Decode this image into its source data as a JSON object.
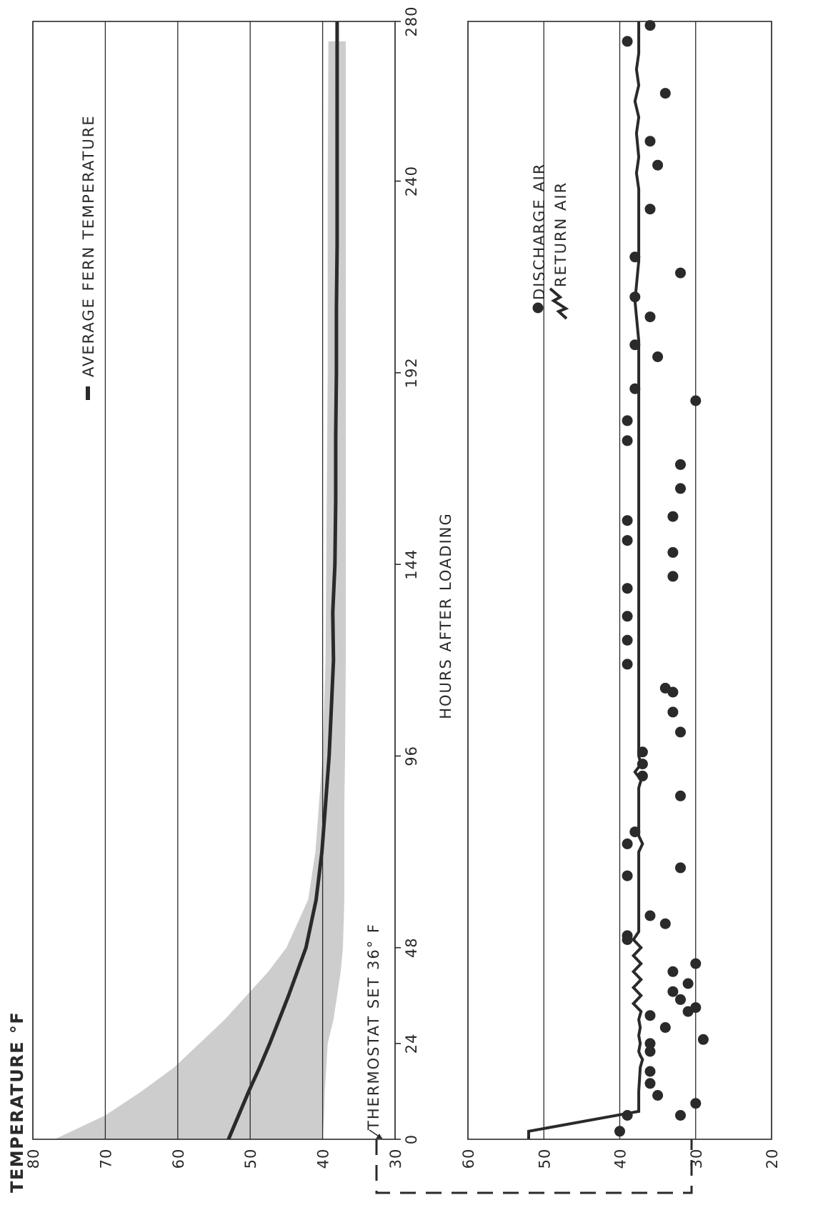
{
  "chart_data": [
    {
      "type": "area",
      "title": "TEMPERATURE °F",
      "xlabel": "HOURS AFTER LOADING",
      "ylabel": "TEMPERATURE °F",
      "xlim": [
        0,
        280
      ],
      "ylim": [
        30,
        80
      ],
      "x_ticks": [
        "0",
        "24",
        "48",
        "96",
        "144",
        "192",
        "240",
        "280"
      ],
      "y_ticks": [
        "80",
        "70",
        "60",
        "50",
        "40",
        "30"
      ],
      "grid": true,
      "legend": "top-right",
      "series": [
        {
          "name": "AVERAGE FERN TEMPERATURE",
          "type": "line",
          "x": [
            0,
            6,
            12,
            18,
            24,
            30,
            36,
            42,
            48,
            60,
            72,
            84,
            96,
            108,
            120,
            132,
            144,
            160,
            176,
            192,
            208,
            224,
            240,
            256,
            272,
            280
          ],
          "y": [
            53,
            51.6,
            50.2,
            48.7,
            47.3,
            46,
            44.7,
            43.5,
            42.3,
            40.9,
            40.1,
            39.6,
            39.1,
            38.8,
            38.5,
            38.6,
            38.3,
            38.2,
            38.2,
            38.1,
            38.1,
            38,
            38,
            38,
            38,
            38
          ]
        }
      ],
      "band": {
        "x": [
          0,
          6,
          12,
          18,
          24,
          30,
          36,
          42,
          48,
          60,
          72,
          84,
          96,
          120,
          144,
          192,
          240,
          275
        ],
        "upper": [
          77,
          70,
          65,
          60.5,
          57,
          53.5,
          50.5,
          47.5,
          45,
          42,
          41,
          40.5,
          40,
          39.6,
          39.5,
          39.3,
          39.3,
          39.2
        ],
        "lower": [
          40,
          39.8,
          39.7,
          39.5,
          39.3,
          38.5,
          38,
          37.5,
          37.2,
          37,
          37,
          37,
          36.9,
          36.8,
          36.8,
          36.8,
          36.8,
          36.8
        ]
      },
      "annotations": [
        {
          "text": "THERMOSTAT SET 36° F",
          "x": 0,
          "y": 36
        }
      ]
    },
    {
      "type": "scatter",
      "xlabel": "HOURS AFTER LOADING",
      "xlim": [
        0,
        280
      ],
      "ylim": [
        20,
        60
      ],
      "x_ticks": [
        "0",
        "24",
        "48",
        "96",
        "144",
        "192",
        "240",
        "280"
      ],
      "y_ticks": [
        "60",
        "50",
        "40",
        "30",
        "20"
      ],
      "grid": true,
      "legend": "top-right",
      "series": [
        {
          "name": "DISCHARGE AIR",
          "type": "scatter",
          "points": [
            [
              2,
              40
            ],
            [
              6,
              39
            ],
            [
              6,
              32
            ],
            [
              9,
              30
            ],
            [
              11,
              35
            ],
            [
              14,
              36
            ],
            [
              17,
              36
            ],
            [
              22,
              36
            ],
            [
              24,
              36
            ],
            [
              25,
              29
            ],
            [
              28,
              34
            ],
            [
              31,
              36
            ],
            [
              32,
              31
            ],
            [
              33,
              30
            ],
            [
              35,
              32
            ],
            [
              37,
              33
            ],
            [
              39,
              31
            ],
            [
              42,
              33
            ],
            [
              44,
              30
            ],
            [
              50,
              39
            ],
            [
              51,
              39
            ],
            [
              54,
              34
            ],
            [
              56,
              36
            ],
            [
              66,
              39
            ],
            [
              68,
              32
            ],
            [
              74,
              39
            ],
            [
              77,
              38
            ],
            [
              86,
              32
            ],
            [
              91,
              37
            ],
            [
              94,
              37
            ],
            [
              97,
              37
            ],
            [
              102,
              32
            ],
            [
              107,
              33
            ],
            [
              112,
              33
            ],
            [
              113,
              34
            ],
            [
              119,
              39
            ],
            [
              125,
              39
            ],
            [
              131,
              39
            ],
            [
              138,
              39
            ],
            [
              141,
              33
            ],
            [
              147,
              33
            ],
            [
              150,
              39
            ],
            [
              155,
              39
            ],
            [
              156,
              33
            ],
            [
              163,
              32
            ],
            [
              169,
              32
            ],
            [
              175,
              39
            ],
            [
              180,
              39
            ],
            [
              185,
              30
            ],
            [
              188,
              38
            ],
            [
              196,
              35
            ],
            [
              199,
              38
            ],
            [
              206,
              36
            ],
            [
              211,
              38
            ],
            [
              217,
              32
            ],
            [
              221,
              38
            ],
            [
              233,
              36
            ],
            [
              244,
              35
            ],
            [
              250,
              36
            ],
            [
              262,
              34
            ],
            [
              275,
              39
            ],
            [
              279,
              36
            ]
          ]
        },
        {
          "name": "RETURN AIR",
          "type": "line",
          "x": [
            0,
            2,
            7,
            12,
            18,
            20,
            21,
            22,
            24,
            26,
            28,
            30,
            32,
            34,
            36,
            38,
            40,
            42,
            44,
            46,
            48,
            50,
            52,
            72,
            74,
            76,
            78,
            88,
            90,
            92,
            94,
            96,
            98,
            140,
            146,
            152,
            160,
            170,
            180,
            190,
            200,
            210,
            220,
            230,
            238,
            242,
            246,
            252,
            256,
            260,
            264,
            268,
            272,
            280
          ],
          "y": [
            52,
            52,
            37.5,
            37.5,
            37.3,
            37,
            37.3,
            37.5,
            37.3,
            37.5,
            37.3,
            37.5,
            37.2,
            38.2,
            37.2,
            38.2,
            37.2,
            38.2,
            37.2,
            38.2,
            37.2,
            38.2,
            37.5,
            37.5,
            37,
            37.5,
            37.5,
            37.5,
            37.2,
            38,
            37.2,
            37.5,
            37.5,
            37.5,
            37.5,
            37.5,
            37.5,
            37.5,
            37.5,
            37.5,
            37.5,
            38,
            37.5,
            37.5,
            37.5,
            37.8,
            37.5,
            37.8,
            37.5,
            38,
            37.5,
            37.8,
            37.5,
            37.5
          ]
        }
      ]
    }
  ],
  "labels": {
    "page_title": "TEMPERATURE °F",
    "xlabel": "HOURS AFTER LOADING",
    "legend_fern": "AVERAGE FERN TEMPERATURE",
    "legend_discharge": "DISCHARGE AIR",
    "legend_return": "RETURN AIR",
    "thermostat": "THERMOSTAT SET 36° F"
  },
  "colors": {
    "ink": "#2a2a2a",
    "band": "#bdbdbd",
    "background": "#ffffff"
  }
}
